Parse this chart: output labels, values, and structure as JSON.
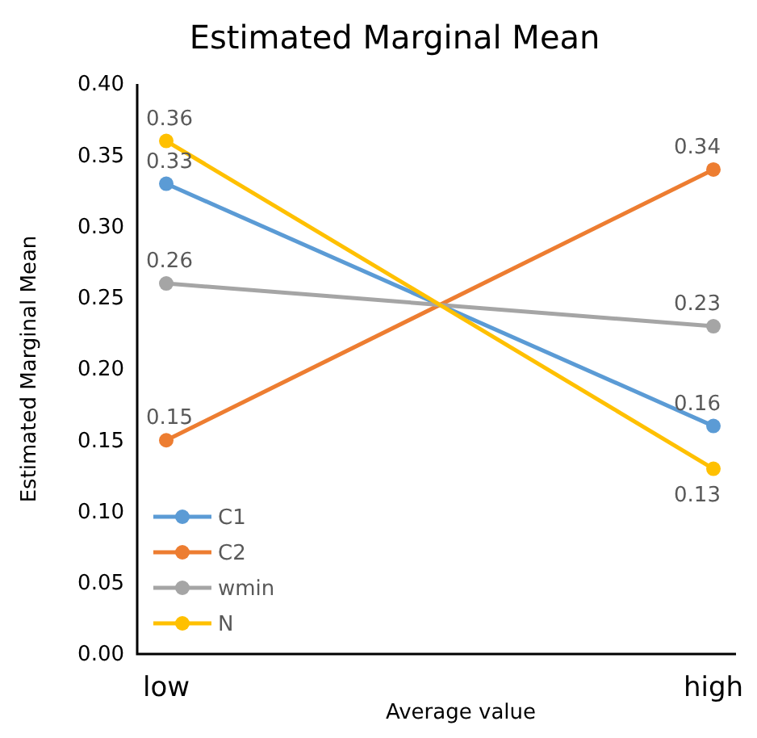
{
  "chart_data": {
    "type": "line",
    "title": "Estimated Marginal Mean",
    "xlabel": "Average value",
    "ylabel": "Estimated Marginal Mean",
    "categories": [
      "low",
      "high"
    ],
    "series": [
      {
        "name": "C1",
        "color": "#5b9bd5",
        "values": [
          0.33,
          0.16
        ]
      },
      {
        "name": "C2",
        "color": "#ed7d31",
        "values": [
          0.15,
          0.34
        ]
      },
      {
        "name": "wmin",
        "color": "#a5a5a5",
        "values": [
          0.26,
          0.23
        ]
      },
      {
        "name": "N",
        "color": "#ffc000",
        "values": [
          0.36,
          0.13
        ]
      }
    ],
    "ylim": [
      0,
      0.4
    ],
    "yticks": [
      "0.00",
      "0.05",
      "0.10",
      "0.15",
      "0.20",
      "0.25",
      "0.30",
      "0.35",
      "0.40"
    ],
    "grid": false,
    "legend": "bottom left",
    "marker": "circle",
    "line_style": "solid",
    "data_labels": true
  }
}
